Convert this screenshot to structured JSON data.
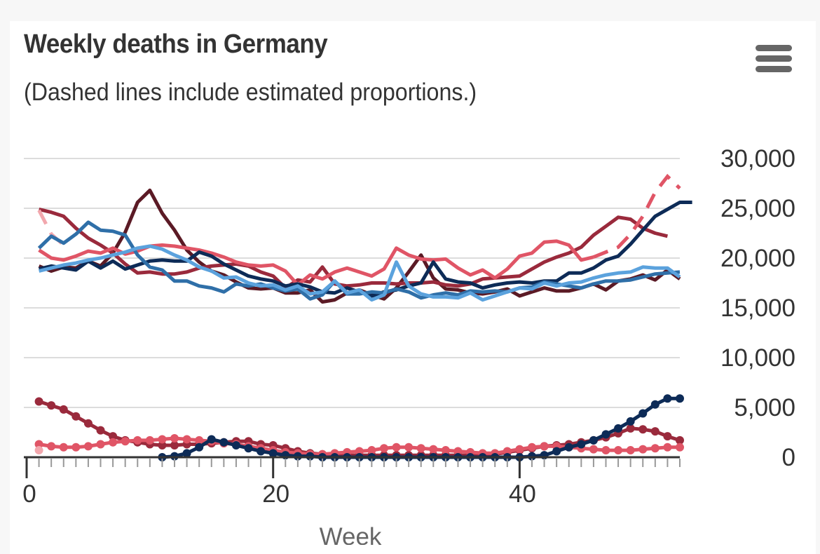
{
  "header": {
    "title": "Weekly deaths in Germany",
    "subtitle": "(Dashed lines include estimated proportions.)",
    "menu_icon": "hamburger-menu-icon"
  },
  "chart_data": {
    "type": "line",
    "title": "Weekly deaths in Germany",
    "subtitle": "(Dashed lines include estimated proportions.)",
    "xlabel": "Week",
    "ylabel": "",
    "xlim": [
      0,
      53
    ],
    "ylim": [
      0,
      30000
    ],
    "x_ticks": [
      0,
      20,
      40
    ],
    "x_tick_labels": [
      "0",
      "20",
      "40"
    ],
    "y_ticks": [
      0,
      5000,
      10000,
      15000,
      20000,
      25000,
      30000
    ],
    "y_tick_labels": [
      "0",
      "5,000",
      "10,000",
      "15,000",
      "20,000",
      "25,000",
      "30,000"
    ],
    "y_axis_position": "right",
    "grid": true,
    "legend": "none",
    "series": [
      {
        "name": "maroon",
        "color": "#5b1a25",
        "style": "solid",
        "markers": false,
        "start_week": 1,
        "values": [
          19200,
          18700,
          19100,
          19000,
          19700,
          19200,
          20500,
          22600,
          25600,
          26800,
          24500,
          22800,
          20800,
          19600,
          18700,
          18300,
          17600,
          17000,
          16900,
          17000,
          16500,
          16500,
          16800,
          15600,
          15800,
          16500,
          16800,
          16300,
          15900,
          17000,
          18600,
          20300,
          18000,
          16900,
          16800,
          16500,
          16400,
          16600,
          16900,
          16200,
          16600,
          17000,
          16700,
          16700,
          17000,
          17400,
          16800,
          17700,
          17900,
          18300,
          17800,
          18800,
          17900
        ]
      },
      {
        "name": "dark-red",
        "color": "#9a2a3c",
        "style": "solid",
        "markers": false,
        "start_week": 1,
        "values": [
          24900,
          24600,
          24200,
          23000,
          22000,
          21300,
          20500,
          19400,
          18500,
          18600,
          18400,
          18400,
          18600,
          19000,
          19200,
          19300,
          19400,
          19200,
          18600,
          18200,
          17000,
          17800,
          17600,
          19100,
          17400,
          17200,
          17300,
          17500,
          17500,
          17400,
          17500,
          17500,
          17600,
          17300,
          17200,
          17400,
          17900,
          18000,
          18100,
          18200,
          18900,
          19600,
          20100,
          20500,
          21100,
          22300,
          23200,
          24100,
          23900,
          23000,
          22500,
          22200
        ]
      },
      {
        "name": "coral",
        "color": "#e05566",
        "style": "solid-then-dashed",
        "markers": false,
        "start_week": 1,
        "dashed_from_week": 46,
        "values": [
          20800,
          20000,
          19800,
          20200,
          20700,
          20500,
          21000,
          20400,
          20700,
          21200,
          21300,
          21200,
          21000,
          20800,
          20500,
          20100,
          19600,
          19300,
          19200,
          19300,
          18700,
          17300,
          18300,
          17900,
          18600,
          19000,
          18600,
          18200,
          18900,
          21000,
          20300,
          19900,
          19800,
          19900,
          19000,
          18300,
          18800,
          18000,
          18900,
          20200,
          20500,
          21600,
          21700,
          21300,
          19800,
          20100,
          20600,
          21100,
          22400,
          24200,
          26600,
          28200,
          27000
        ]
      },
      {
        "name": "light-pink",
        "color": "#f2a7ad",
        "style": "dashed",
        "markers": false,
        "start_week": 1,
        "values": [
          24800,
          22400,
          21300
        ]
      },
      {
        "name": "navy",
        "color": "#0d2b57",
        "style": "solid",
        "markers": false,
        "start_week": 1,
        "values": [
          18900,
          19200,
          19000,
          18800,
          19700,
          19000,
          19700,
          18900,
          19300,
          19700,
          19800,
          19700,
          19700,
          20600,
          20200,
          19400,
          18800,
          18200,
          17900,
          17700,
          17200,
          17400,
          17100,
          16600,
          16500,
          17000,
          16600,
          16200,
          16600,
          16800,
          17200,
          17500,
          19600,
          17900,
          17600,
          17500,
          17000,
          17300,
          17500,
          17600,
          17500,
          17700,
          17700,
          18500,
          18500,
          19000,
          19800,
          20200,
          21400,
          22800,
          24200,
          24900,
          25600,
          25600
        ]
      },
      {
        "name": "mid-blue",
        "color": "#2f6fa8",
        "style": "solid",
        "markers": false,
        "start_week": 1,
        "values": [
          21000,
          22200,
          21500,
          22400,
          23600,
          22800,
          22700,
          22300,
          20300,
          19100,
          18800,
          17700,
          17700,
          17200,
          17000,
          16600,
          17400,
          17200,
          17400,
          17000,
          16700,
          16900,
          15900,
          16300,
          17700,
          16400,
          16400,
          16600,
          16500,
          16900,
          16600,
          16000,
          16300,
          16500,
          16300,
          16700,
          16600,
          16700,
          16600,
          17000,
          17100,
          17600,
          17400,
          17200,
          17000,
          17400,
          17700,
          17700,
          17800,
          18100,
          18400,
          18500,
          18600
        ]
      },
      {
        "name": "light-blue",
        "color": "#5ba2dd",
        "style": "solid",
        "markers": false,
        "start_week": 1,
        "values": [
          18700,
          19000,
          19300,
          19500,
          19800,
          20000,
          20300,
          20600,
          21000,
          21200,
          20900,
          20300,
          19800,
          19100,
          18700,
          18000,
          18100,
          17500,
          17200,
          17300,
          16800,
          17200,
          16400,
          16600,
          17700,
          16500,
          16800,
          15800,
          16300,
          19600,
          17200,
          16400,
          16100,
          16100,
          16000,
          16500,
          15800,
          16200,
          16600,
          17000,
          16900,
          17500,
          17200,
          17500,
          17600,
          18000,
          18300,
          18500,
          18600,
          19100,
          19000,
          19000,
          18100
        ]
      },
      {
        "name": "covid-dark-red",
        "color": "#9a2a3c",
        "style": "solid",
        "markers": true,
        "start_week": 1,
        "values": [
          5600,
          5200,
          4800,
          4100,
          3400,
          2700,
          2100,
          1700,
          1500,
          1300,
          1200,
          1200,
          1300,
          1300,
          1400,
          1500,
          1600,
          1600,
          1300,
          1200,
          900,
          600,
          400,
          300,
          200,
          200,
          200,
          200,
          200,
          200,
          200,
          200,
          200,
          200,
          200,
          200,
          200,
          300,
          500,
          700,
          900,
          1100,
          1200,
          1300,
          1500,
          1700,
          2000,
          2400,
          2900,
          2800,
          2600,
          2100,
          1700
        ]
      },
      {
        "name": "covid-coral",
        "color": "#e05566",
        "style": "solid",
        "markers": true,
        "start_week": 1,
        "values": [
          1300,
          1100,
          1000,
          1000,
          1100,
          1300,
          1500,
          1600,
          1700,
          1700,
          1800,
          1900,
          1800,
          1700,
          1600,
          1400,
          1300,
          1100,
          900,
          700,
          500,
          400,
          300,
          300,
          400,
          500,
          600,
          700,
          900,
          1000,
          1000,
          900,
          800,
          700,
          600,
          500,
          400,
          400,
          600,
          800,
          1000,
          1100,
          1100,
          1000,
          900,
          800,
          700,
          700,
          700,
          800,
          900,
          1000,
          1000
        ]
      },
      {
        "name": "covid-navy",
        "color": "#0d2b57",
        "style": "solid",
        "markers": true,
        "start_week": 11,
        "values": [
          0,
          100,
          400,
          1000,
          1800,
          1500,
          1200,
          900,
          600,
          400,
          200,
          100,
          100,
          0,
          0,
          0,
          0,
          0,
          0,
          0,
          0,
          0,
          0,
          0,
          0,
          0,
          0,
          0,
          0,
          0,
          100,
          200,
          600,
          1000,
          1300,
          1700,
          2300,
          2900,
          3600,
          4400,
          5300,
          5900,
          5900
        ]
      },
      {
        "name": "covid-light-pink",
        "color": "#f2a7ad",
        "style": "point",
        "markers": true,
        "start_week": 1,
        "values": [
          700
        ]
      }
    ]
  }
}
